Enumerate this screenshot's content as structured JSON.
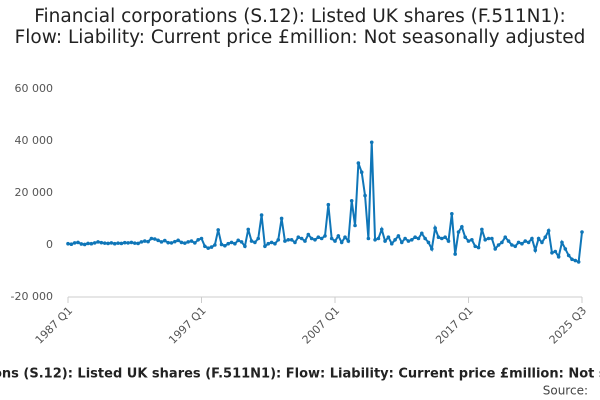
{
  "chart_data": {
    "type": "line",
    "title": "Financial corporations (S.12): Listed UK shares (F.511N1): Flow: Liability: Current price £million: Not seasonally adjusted",
    "source": "Source:",
    "categories": [
      "1987 Q1",
      null,
      null,
      null,
      null,
      null,
      null,
      null,
      null,
      null,
      null,
      null,
      null,
      null,
      null,
      null,
      null,
      null,
      null,
      null,
      null,
      null,
      null,
      null,
      null,
      null,
      null,
      null,
      null,
      null,
      null,
      null,
      null,
      null,
      null,
      null,
      null,
      null,
      null,
      null,
      "1997 Q1",
      null,
      null,
      null,
      null,
      null,
      null,
      null,
      null,
      null,
      null,
      null,
      null,
      null,
      null,
      null,
      null,
      null,
      null,
      null,
      null,
      null,
      null,
      null,
      null,
      null,
      null,
      null,
      null,
      null,
      null,
      null,
      null,
      null,
      null,
      null,
      null,
      null,
      null,
      null,
      "2007 Q1",
      null,
      null,
      null,
      null,
      null,
      null,
      null,
      null,
      null,
      null,
      null,
      null,
      null,
      null,
      null,
      null,
      null,
      null,
      null,
      null,
      null,
      null,
      null,
      null,
      null,
      null,
      null,
      null,
      null,
      null,
      null,
      null,
      null,
      null,
      null,
      null,
      null,
      null,
      null,
      "2017 Q1",
      null,
      null,
      null,
      null,
      null,
      null,
      null,
      null,
      null,
      null,
      null,
      null,
      null,
      null,
      null,
      null,
      null,
      null,
      null,
      null,
      null,
      null,
      null,
      null,
      null,
      null,
      null,
      null,
      null,
      null,
      null,
      null,
      null,
      "2025 Q3"
    ],
    "series": [
      {
        "name": "Listed UK shares",
        "color": "#0f76b8",
        "values": [
          500,
          300,
          800,
          1000,
          400,
          200,
          600,
          500,
          800,
          1200,
          900,
          700,
          600,
          800,
          500,
          700,
          600,
          900,
          800,
          1000,
          700,
          600,
          1200,
          1500,
          1300,
          2500,
          2300,
          1800,
          1200,
          1700,
          900,
          800,
          1300,
          1800,
          1000,
          700,
          1200,
          1500,
          800,
          2000,
          2500,
          -500,
          -1200,
          -800,
          0,
          5800,
          200,
          -300,
          500,
          1000,
          500,
          1800,
          1200,
          -500,
          6000,
          1500,
          1000,
          2500,
          11500,
          -500,
          500,
          1000,
          500,
          2000,
          10200,
          1500,
          2000,
          2000,
          1000,
          3000,
          2500,
          1500,
          4000,
          2500,
          2000,
          3000,
          2500,
          3500,
          15500,
          2500,
          1500,
          3500,
          1000,
          3000,
          1500,
          17000,
          7500,
          31500,
          28000,
          19000,
          2500,
          39500,
          2000,
          2500,
          6000,
          1500,
          3000,
          500,
          2000,
          3500,
          1000,
          2500,
          1500,
          2000,
          3000,
          2500,
          4500,
          2500,
          1000,
          -1500,
          6500,
          3000,
          2500,
          3000,
          1500,
          12000,
          -3500,
          5000,
          7000,
          3000,
          1500,
          2000,
          -500,
          -1000,
          6000,
          2000,
          2500,
          2500,
          -1500,
          0,
          1000,
          3000,
          1500,
          0,
          -500,
          1000,
          500,
          1500,
          1000,
          2500,
          -2000,
          2500,
          1000,
          3000,
          5500,
          -3000,
          -2500,
          -4500,
          1000,
          -1500,
          -4000,
          -5500,
          -6000,
          -6500,
          5000
        ]
      }
    ],
    "ylim": [
      -20000,
      60000
    ],
    "yticks": [
      {
        "value": -20000,
        "label": "-20 000"
      },
      0,
      {
        "value": 20000,
        "label": "20 000"
      },
      {
        "value": 40000,
        "label": "40 000"
      },
      {
        "value": 60000,
        "label": "60 000"
      }
    ],
    "grid": false
  }
}
